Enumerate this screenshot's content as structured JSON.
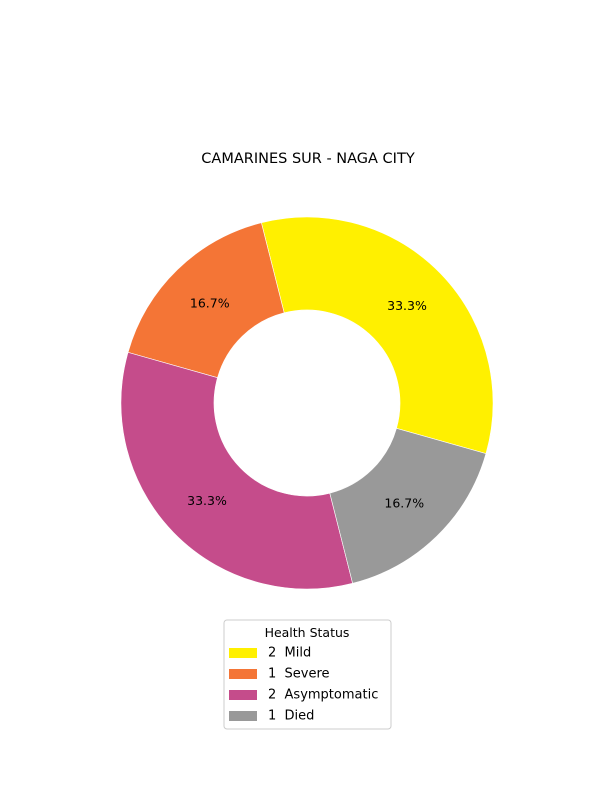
{
  "chart_data": {
    "type": "pie",
    "title": "CAMARINES SUR - NAGA CITY",
    "legend_title": "Health Status",
    "legend_placement": "bottom-center",
    "donut": true,
    "slices": [
      {
        "label": "2  Mild",
        "value": 2,
        "pct_label": "33.3%",
        "color": "#FFF000"
      },
      {
        "label": "1  Severe",
        "value": 1,
        "pct_label": "16.7%",
        "color": "#F47536"
      },
      {
        "label": "2  Asymptomatic",
        "value": 2,
        "pct_label": "33.3%",
        "color": "#C54C8B"
      },
      {
        "label": "1  Died",
        "value": 1,
        "pct_label": "16.7%",
        "color": "#999999"
      }
    ]
  }
}
